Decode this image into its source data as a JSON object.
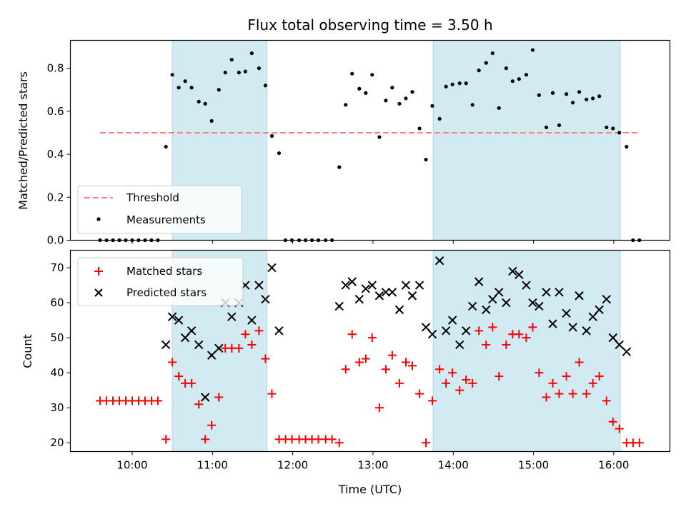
{
  "title": "Flux total observing time = 3.50 h",
  "colors": {
    "shade": "#add8e6",
    "threshold": "#ff7f7f",
    "matched": "#ff0000",
    "predicted": "#000000",
    "measure": "#000000"
  },
  "chart_data": [
    {
      "type": "scatter",
      "ylabel": "Matched/Predicted stars",
      "xlim": [
        9.23,
        16.7
      ],
      "ylim": [
        0,
        0.93
      ],
      "yticks": [
        0.0,
        0.2,
        0.4,
        0.6,
        0.8
      ],
      "ytick_labels": [
        "0.0",
        "0.2",
        "0.4",
        "0.6",
        "0.8"
      ],
      "shaded_spans": [
        [
          10.5,
          11.68
        ],
        [
          13.75,
          16.08
        ]
      ],
      "threshold": {
        "name": "Threshold",
        "y": 0.5,
        "x_start": 9.6,
        "x_end": 16.3
      },
      "legend": {
        "loc": "lower-left",
        "entries": [
          "Threshold",
          "Measurements"
        ]
      },
      "series": [
        {
          "name": "Measurements",
          "marker": "dot",
          "x": [
            9.6,
            9.68,
            9.76,
            9.84,
            9.92,
            10.0,
            10.08,
            10.16,
            10.24,
            10.32,
            10.42,
            10.5,
            10.58,
            10.66,
            10.74,
            10.83,
            10.91,
            10.99,
            11.08,
            11.16,
            11.24,
            11.33,
            11.41,
            11.49,
            11.58,
            11.66,
            11.74,
            11.83,
            11.91,
            11.99,
            12.08,
            12.16,
            12.24,
            12.32,
            12.41,
            12.49,
            12.58,
            12.66,
            12.74,
            12.83,
            12.91,
            12.99,
            13.08,
            13.16,
            13.24,
            13.33,
            13.41,
            13.49,
            13.58,
            13.66,
            13.74,
            13.83,
            13.91,
            13.99,
            14.08,
            14.16,
            14.24,
            14.32,
            14.41,
            14.49,
            14.57,
            14.66,
            14.74,
            14.82,
            14.91,
            14.99,
            15.07,
            15.16,
            15.24,
            15.32,
            15.41,
            15.49,
            15.57,
            15.66,
            15.74,
            15.82,
            15.91,
            15.99,
            16.07,
            16.16,
            16.24,
            16.32
          ],
          "y": [
            0,
            0,
            0,
            0,
            0,
            0,
            0,
            0,
            0,
            0,
            0.435,
            0.77,
            0.71,
            0.74,
            0.71,
            0.645,
            0.635,
            0.555,
            0.7,
            0.78,
            0.84,
            0.78,
            0.785,
            0.87,
            0.8,
            0.72,
            0.485,
            0.405,
            0,
            0,
            0,
            0,
            0,
            0,
            0,
            0,
            0.34,
            0.63,
            0.775,
            0.705,
            0.685,
            0.77,
            0.48,
            0.65,
            0.71,
            0.635,
            0.66,
            0.69,
            0.52,
            0.375,
            0.625,
            0.565,
            0.715,
            0.725,
            0.73,
            0.73,
            0.63,
            0.79,
            0.825,
            0.87,
            0.615,
            0.8,
            0.74,
            0.75,
            0.77,
            0.885,
            0.675,
            0.525,
            0.685,
            0.535,
            0.68,
            0.64,
            0.69,
            0.655,
            0.66,
            0.67,
            0.525,
            0.52,
            0.5,
            0.435,
            0,
            0
          ]
        }
      ]
    },
    {
      "type": "scatter",
      "ylabel": "Count",
      "xlabel": "Time (UTC)",
      "xlim": [
        9.23,
        16.7
      ],
      "ylim": [
        17.5,
        75
      ],
      "yticks": [
        20,
        30,
        40,
        50,
        60,
        70
      ],
      "ytick_labels": [
        "20",
        "30",
        "40",
        "50",
        "60",
        "70"
      ],
      "xticks": [
        10,
        11,
        12,
        13,
        14,
        15,
        16
      ],
      "xtick_labels": [
        "10:00",
        "11:00",
        "12:00",
        "13:00",
        "14:00",
        "15:00",
        "16:00"
      ],
      "shaded_spans": [
        [
          10.5,
          11.68
        ],
        [
          13.75,
          16.08
        ]
      ],
      "legend": {
        "loc": "upper-left",
        "entries": [
          "Matched stars",
          "Predicted stars"
        ]
      },
      "series": [
        {
          "name": "Matched stars",
          "marker": "plus",
          "x": [
            9.6,
            9.68,
            9.76,
            9.84,
            9.92,
            10.0,
            10.08,
            10.16,
            10.24,
            10.32,
            10.42,
            10.5,
            10.58,
            10.66,
            10.74,
            10.83,
            10.91,
            10.99,
            11.08,
            11.16,
            11.24,
            11.33,
            11.41,
            11.49,
            11.58,
            11.66,
            11.74,
            11.83,
            11.91,
            11.99,
            12.08,
            12.16,
            12.24,
            12.32,
            12.41,
            12.49,
            12.58,
            12.66,
            12.74,
            12.83,
            12.91,
            12.99,
            13.08,
            13.16,
            13.24,
            13.33,
            13.41,
            13.49,
            13.58,
            13.66,
            13.74,
            13.83,
            13.91,
            13.99,
            14.08,
            14.16,
            14.24,
            14.32,
            14.41,
            14.49,
            14.57,
            14.66,
            14.74,
            14.82,
            14.91,
            14.99,
            15.07,
            15.16,
            15.24,
            15.32,
            15.41,
            15.49,
            15.57,
            15.66,
            15.74,
            15.82,
            15.91,
            15.99,
            16.07,
            16.16,
            16.24,
            16.32
          ],
          "y": [
            32,
            32,
            32,
            32,
            32,
            32,
            32,
            32,
            32,
            32,
            21,
            43,
            39,
            37,
            37,
            31,
            21,
            25,
            33,
            47,
            47,
            47,
            51,
            48,
            52,
            44,
            34,
            21,
            21,
            21,
            21,
            21,
            21,
            21,
            21,
            21,
            20,
            41,
            51,
            43,
            44,
            50,
            30,
            41,
            45,
            37,
            43,
            42,
            34,
            20,
            32,
            41,
            37,
            40,
            35,
            38,
            37,
            52,
            48,
            53,
            39,
            48,
            51,
            51,
            50,
            53,
            40,
            33,
            37,
            34,
            39,
            34,
            43,
            34,
            37,
            39,
            32,
            26,
            24,
            20,
            20,
            20
          ]
        },
        {
          "name": "Predicted stars",
          "marker": "x",
          "x": [
            10.42,
            10.5,
            10.58,
            10.66,
            10.74,
            10.83,
            10.91,
            10.99,
            11.08,
            11.16,
            11.24,
            11.33,
            11.41,
            11.49,
            11.58,
            11.66,
            11.74,
            11.83,
            12.58,
            12.66,
            12.74,
            12.83,
            12.91,
            12.99,
            13.08,
            13.16,
            13.24,
            13.33,
            13.41,
            13.49,
            13.58,
            13.66,
            13.74,
            13.83,
            13.91,
            13.99,
            14.08,
            14.16,
            14.24,
            14.32,
            14.41,
            14.49,
            14.57,
            14.66,
            14.74,
            14.82,
            14.91,
            14.99,
            15.07,
            15.16,
            15.24,
            15.32,
            15.41,
            15.49,
            15.57,
            15.66,
            15.74,
            15.82,
            15.91,
            15.99,
            16.07,
            16.16
          ],
          "y": [
            48,
            56,
            55,
            50,
            52,
            48,
            33,
            45,
            47,
            60,
            56,
            60,
            65,
            55,
            65,
            61,
            70,
            52,
            59,
            65,
            66,
            61,
            64,
            65,
            62,
            63,
            63,
            58,
            65,
            62,
            65,
            53,
            51,
            72,
            52,
            55,
            48,
            52,
            59,
            66,
            58,
            61,
            63,
            60,
            69,
            68,
            65,
            60,
            59,
            63,
            54,
            63,
            57,
            53,
            62,
            52,
            56,
            58,
            61,
            50,
            48,
            46
          ]
        }
      ]
    }
  ]
}
